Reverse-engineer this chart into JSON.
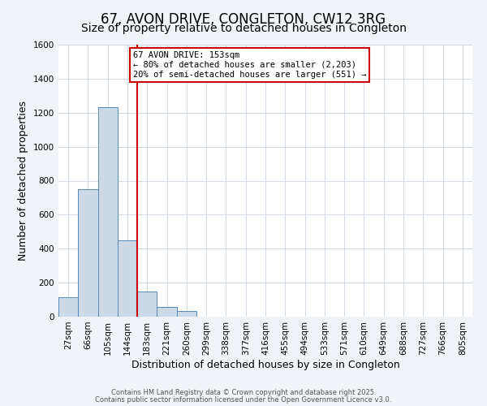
{
  "title": "67, AVON DRIVE, CONGLETON, CW12 3RG",
  "subtitle": "Size of property relative to detached houses in Congleton",
  "xlabel": "Distribution of detached houses by size in Congleton",
  "ylabel": "Number of detached properties",
  "categories": [
    "27sqm",
    "66sqm",
    "105sqm",
    "144sqm",
    "183sqm",
    "221sqm",
    "260sqm",
    "299sqm",
    "338sqm",
    "377sqm",
    "416sqm",
    "455sqm",
    "494sqm",
    "533sqm",
    "571sqm",
    "610sqm",
    "649sqm",
    "688sqm",
    "727sqm",
    "766sqm",
    "805sqm"
  ],
  "values": [
    113,
    750,
    1230,
    450,
    150,
    57,
    33,
    0,
    0,
    0,
    0,
    0,
    0,
    0,
    0,
    0,
    0,
    0,
    0,
    0,
    0
  ],
  "bar_color": "#ccdae8",
  "bar_edge_color": "#5588bb",
  "vline_x": 3.5,
  "vline_color": "#cc0000",
  "annotation_title": "67 AVON DRIVE: 153sqm",
  "annotation_line1": "← 80% of detached houses are smaller (2,203)",
  "annotation_line2": "20% of semi-detached houses are larger (551) →",
  "annotation_box_color": "#ffffff",
  "annotation_box_edge_color": "#cc0000",
  "ylim": [
    0,
    1600
  ],
  "yticks": [
    0,
    200,
    400,
    600,
    800,
    1000,
    1200,
    1400,
    1600
  ],
  "footnote1": "Contains HM Land Registry data © Crown copyright and database right 2025.",
  "footnote2": "Contains public sector information licensed under the Open Government Licence v3.0.",
  "background_color": "#f0f4f8",
  "plot_bg_color": "#ffffff",
  "grid_color": "#c8d4e0",
  "title_fontsize": 12,
  "subtitle_fontsize": 10,
  "xlabel_fontsize": 9,
  "ylabel_fontsize": 9,
  "tick_fontsize": 7.5,
  "footnote_fontsize": 6
}
